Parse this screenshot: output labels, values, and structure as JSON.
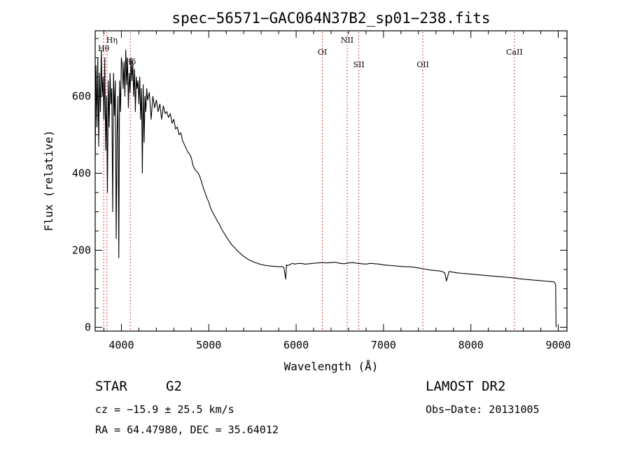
{
  "chart_data": {
    "type": "line",
    "title": "spec−56571−GAC064N37B2_sp01−238.fits",
    "xlabel": "Wavelength (Å)",
    "ylabel": "Flux (relative)",
    "xlim": [
      3700,
      9100
    ],
    "ylim": [
      -10,
      770
    ],
    "xticks": [
      4000,
      5000,
      6000,
      7000,
      8000,
      9000
    ],
    "yticks": [
      0,
      200,
      400,
      600
    ],
    "grid": false,
    "line_color": "#000000",
    "marker_color": "#cc0000",
    "series": [
      {
        "x": [
          3700,
          3710,
          3720,
          3730,
          3740,
          3750,
          3760,
          3770,
          3780,
          3790,
          3800,
          3810,
          3820,
          3830,
          3840,
          3850,
          3860,
          3870,
          3880,
          3890,
          3900,
          3910,
          3920,
          3930,
          3940,
          3950,
          3960,
          3970,
          3980,
          3990,
          4000,
          4010,
          4020,
          4030,
          4040,
          4050,
          4060,
          4070,
          4080,
          4090,
          4100,
          4110,
          4120,
          4130,
          4140,
          4150,
          4160,
          4170,
          4180,
          4190,
          4200,
          4210,
          4220,
          4230,
          4240,
          4250,
          4260,
          4270,
          4280,
          4290,
          4300,
          4320,
          4340,
          4360,
          4380,
          4400,
          4420,
          4440,
          4460,
          4480,
          4500,
          4520,
          4540,
          4560,
          4580,
          4600,
          4620,
          4640,
          4660,
          4680,
          4700,
          4720,
          4740,
          4760,
          4780,
          4800,
          4820,
          4840,
          4860,
          4880,
          4900,
          4920,
          4940,
          4960,
          4980,
          5000,
          5020,
          5040,
          5060,
          5080,
          5100,
          5120,
          5140,
          5160,
          5180,
          5200,
          5220,
          5240,
          5260,
          5280,
          5300,
          5320,
          5340,
          5360,
          5380,
          5400,
          5420,
          5440,
          5460,
          5480,
          5500,
          5520,
          5540,
          5560,
          5580,
          5600,
          5620,
          5640,
          5660,
          5680,
          5700,
          5720,
          5740,
          5760,
          5780,
          5800,
          5820,
          5840,
          5860,
          5880,
          5890,
          5900,
          5920,
          5940,
          5960,
          5980,
          6000,
          6050,
          6100,
          6150,
          6200,
          6250,
          6300,
          6350,
          6400,
          6450,
          6500,
          6550,
          6600,
          6650,
          6700,
          6750,
          6800,
          6850,
          6900,
          6950,
          7000,
          7050,
          7100,
          7150,
          7200,
          7250,
          7300,
          7350,
          7400,
          7450,
          7500,
          7550,
          7600,
          7650,
          7700,
          7720,
          7750,
          7800,
          7850,
          7900,
          7950,
          8000,
          8050,
          8100,
          8150,
          8200,
          8250,
          8300,
          8350,
          8400,
          8450,
          8500,
          8550,
          8600,
          8650,
          8700,
          8750,
          8800,
          8850,
          8900,
          8950,
          8960,
          8970,
          8975
        ],
        "y": [
          430,
          680,
          520,
          700,
          470,
          660,
          560,
          720,
          600,
          650,
          540,
          700,
          460,
          600,
          350,
          640,
          520,
          660,
          580,
          620,
          300,
          660,
          550,
          640,
          230,
          500,
          600,
          180,
          640,
          560,
          700,
          680,
          620,
          690,
          600,
          720,
          630,
          700,
          570,
          660,
          610,
          700,
          640,
          690,
          600,
          670,
          560,
          650,
          620,
          640,
          580,
          650,
          540,
          620,
          400,
          630,
          480,
          600,
          560,
          620,
          590,
          610,
          540,
          600,
          570,
          590,
          560,
          580,
          540,
          575,
          555,
          560,
          545,
          555,
          530,
          540,
          515,
          520,
          500,
          505,
          485,
          475,
          465,
          455,
          450,
          440,
          420,
          410,
          405,
          400,
          390,
          375,
          360,
          348,
          335,
          325,
          310,
          300,
          292,
          284,
          275,
          268,
          258,
          250,
          243,
          235,
          228,
          222,
          215,
          210,
          206,
          200,
          196,
          192,
          188,
          184,
          181,
          178,
          175,
          173,
          171,
          169,
          167,
          166,
          164,
          163,
          162,
          161,
          160,
          160,
          159,
          159,
          158,
          158,
          158,
          157,
          157,
          158,
          155,
          125,
          162,
          160,
          162,
          164,
          166,
          164,
          165,
          166,
          164,
          165,
          166,
          167,
          168,
          167,
          168,
          169,
          166,
          165,
          167,
          168,
          166,
          165,
          164,
          166,
          165,
          164,
          162,
          161,
          160,
          159,
          158,
          157,
          157,
          156,
          154,
          152,
          150,
          148,
          147,
          146,
          142,
          120,
          145,
          143,
          141,
          140,
          139,
          138,
          137,
          136,
          135,
          134,
          133,
          132,
          131,
          130,
          129,
          128,
          126,
          125,
          124,
          123,
          122,
          121,
          120,
          119,
          118,
          116,
          110,
          0
        ]
      }
    ],
    "lines": [
      {
        "name": "Hη",
        "x": 3835
      },
      {
        "name": "Hθ",
        "x": 3797
      },
      {
        "name": "Hδ",
        "x": 4102
      },
      {
        "name": "OI",
        "x": 6300
      },
      {
        "name": "NII",
        "x": 6584
      },
      {
        "name": "SII",
        "x": 6717
      },
      {
        "name": "OII",
        "x": 7450
      },
      {
        "name": "CaII",
        "x": 8498
      }
    ]
  },
  "info": {
    "star_label": "STAR",
    "star_class": "G2",
    "cz": "cz = −15.9 ± 25.5 km/s",
    "radec": "RA =  64.47980, DEC =  35.64012",
    "survey": "LAMOST DR2",
    "obs_date": "Obs−Date: 20131005"
  }
}
